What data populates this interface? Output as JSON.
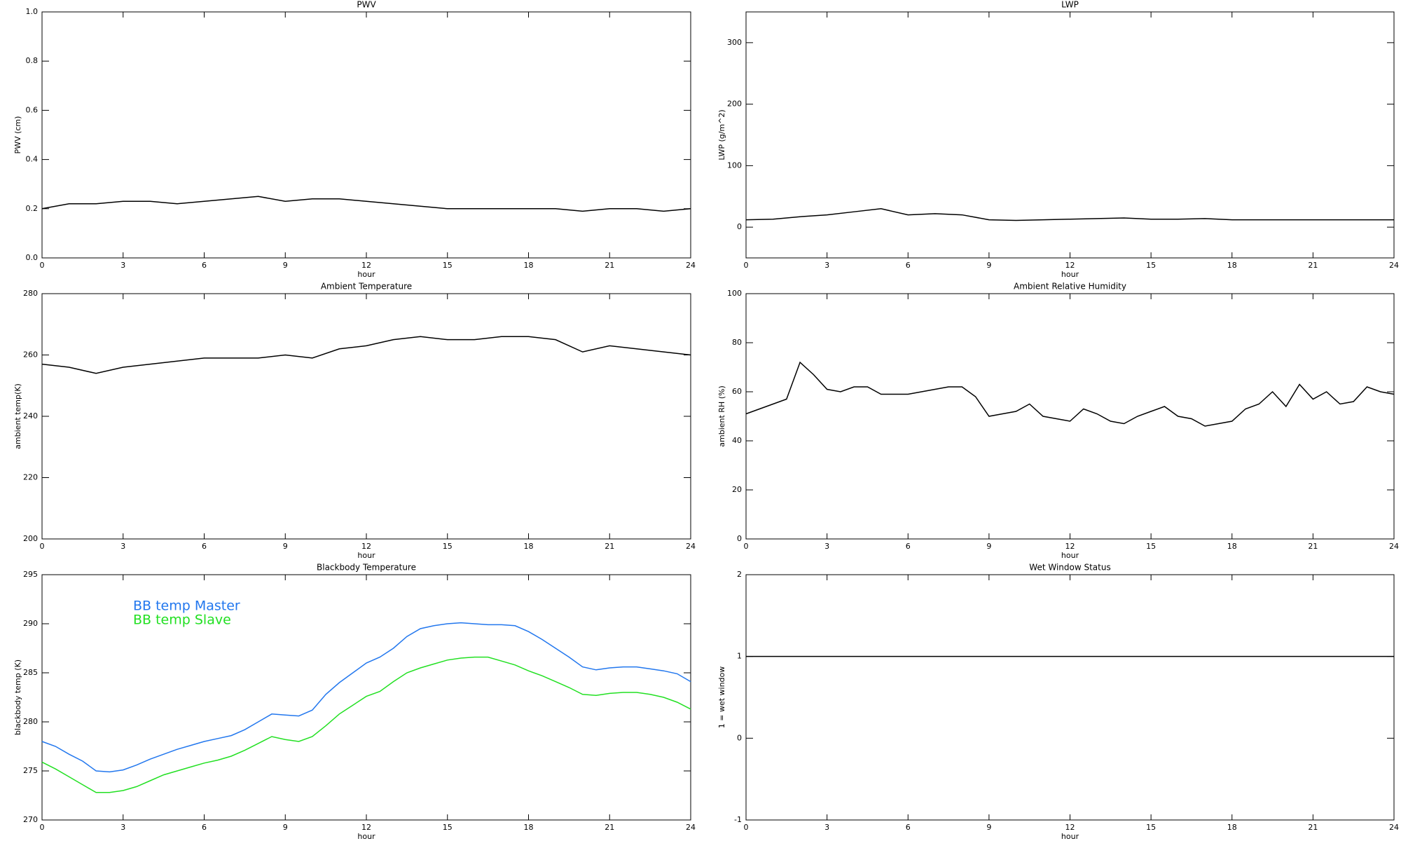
{
  "chart_data": [
    {
      "type": "line",
      "title": "PWV",
      "xlabel": "hour",
      "ylabel": "PWV (cm)",
      "color": "#000000",
      "xlim": [
        0,
        24
      ],
      "xticks": [
        0,
        3,
        6,
        9,
        12,
        15,
        18,
        21,
        24
      ],
      "ylim": [
        0,
        1
      ],
      "yticks": [
        {
          "value": 0,
          "label": "0.0"
        },
        0.2,
        0.4,
        0.6,
        0.8,
        {
          "value": 1,
          "label": "1.0"
        }
      ],
      "x": [
        0,
        1,
        2,
        3,
        4,
        5,
        6,
        7,
        8,
        9,
        10,
        11,
        12,
        13,
        14,
        15,
        16,
        17,
        18,
        19,
        20,
        21,
        22,
        23,
        24
      ],
      "values": [
        0.2,
        0.22,
        0.22,
        0.23,
        0.23,
        0.22,
        0.23,
        0.24,
        0.25,
        0.23,
        0.24,
        0.24,
        0.23,
        0.22,
        0.21,
        0.2,
        0.2,
        0.2,
        0.2,
        0.2,
        0.19,
        0.2,
        0.2,
        0.19,
        0.2
      ]
    },
    {
      "type": "line",
      "title": "LWP",
      "xlabel": "hour",
      "ylabel": "LWP (g/m^2)",
      "color": "#000000",
      "xlim": [
        0,
        24
      ],
      "xticks": [
        0,
        3,
        6,
        9,
        12,
        15,
        18,
        21,
        24
      ],
      "ylim": [
        -50,
        350
      ],
      "yticks": [
        0,
        100,
        200,
        300
      ],
      "x": [
        0,
        1,
        2,
        3,
        4,
        5,
        6,
        7,
        8,
        9,
        10,
        11,
        12,
        13,
        14,
        15,
        16,
        17,
        18,
        19,
        20,
        21,
        22,
        23,
        24
      ],
      "values": [
        12,
        13,
        17,
        20,
        25,
        30,
        20,
        22,
        20,
        12,
        11,
        12,
        13,
        14,
        15,
        13,
        13,
        14,
        12,
        12,
        12,
        12,
        12,
        12,
        12
      ]
    },
    {
      "type": "line",
      "title": "Ambient Temperature",
      "xlabel": "hour",
      "ylabel": "ambient temp(K)",
      "color": "#000000",
      "xlim": [
        0,
        24
      ],
      "xticks": [
        0,
        3,
        6,
        9,
        12,
        15,
        18,
        21,
        24
      ],
      "ylim": [
        200,
        280
      ],
      "yticks": [
        200,
        220,
        240,
        260,
        280
      ],
      "x": [
        0,
        1,
        2,
        3,
        4,
        5,
        6,
        7,
        8,
        9,
        10,
        11,
        12,
        13,
        14,
        15,
        16,
        17,
        18,
        19,
        20,
        21,
        22,
        23,
        24
      ],
      "values": [
        257,
        256,
        254,
        256,
        257,
        258,
        259,
        259,
        259,
        260,
        259,
        262,
        263,
        265,
        266,
        265,
        265,
        266,
        266,
        265,
        261,
        263,
        262,
        261,
        260
      ]
    },
    {
      "type": "line",
      "title": "Ambient Relative Humidity",
      "xlabel": "hour",
      "ylabel": "ambient RH (%)",
      "color": "#000000",
      "xlim": [
        0,
        24
      ],
      "xticks": [
        0,
        3,
        6,
        9,
        12,
        15,
        18,
        21,
        24
      ],
      "ylim": [
        0,
        100
      ],
      "yticks": [
        0,
        20,
        40,
        60,
        80,
        100
      ],
      "x": [
        0,
        0.5,
        1,
        1.5,
        2,
        2.5,
        3,
        3.5,
        4,
        4.5,
        5,
        5.5,
        6,
        6.5,
        7,
        7.5,
        8,
        8.5,
        9,
        9.5,
        10,
        10.5,
        11,
        11.5,
        12,
        12.5,
        13,
        13.5,
        14,
        14.5,
        15,
        15.5,
        16,
        16.5,
        17,
        17.5,
        18,
        18.5,
        19,
        19.5,
        20,
        20.5,
        21,
        21.5,
        22,
        22.5,
        23,
        23.5,
        24
      ],
      "values": [
        51,
        53,
        55,
        57,
        72,
        67,
        61,
        60,
        62,
        62,
        59,
        59,
        59,
        60,
        61,
        62,
        62,
        58,
        50,
        51,
        52,
        55,
        50,
        49,
        48,
        53,
        51,
        48,
        47,
        50,
        52,
        54,
        50,
        49,
        46,
        47,
        48,
        53,
        55,
        60,
        54,
        63,
        57,
        60,
        55,
        56,
        62,
        60,
        59
      ]
    },
    {
      "type": "line",
      "title": "Blackbody Temperature",
      "xlabel": "hour",
      "ylabel": "blackbody temp (K)",
      "legend": "upper left",
      "xlim": [
        0,
        24
      ],
      "xticks": [
        0,
        3,
        6,
        9,
        12,
        15,
        18,
        21,
        24
      ],
      "ylim": [
        270,
        295
      ],
      "yticks": [
        270,
        275,
        280,
        285,
        290,
        295
      ],
      "x": [
        0,
        0.5,
        1,
        1.5,
        2,
        2.5,
        3,
        3.5,
        4,
        4.5,
        5,
        5.5,
        6,
        6.5,
        7,
        7.5,
        8,
        8.5,
        9,
        9.5,
        10,
        10.5,
        11,
        11.5,
        12,
        12.5,
        13,
        13.5,
        14,
        14.5,
        15,
        15.5,
        16,
        16.5,
        17,
        17.5,
        18,
        18.5,
        19,
        19.5,
        20,
        20.5,
        21,
        21.5,
        22,
        22.5,
        23,
        23.5,
        24
      ],
      "series": [
        {
          "name": "BB temp Master",
          "color": "#2277ee",
          "values": [
            278,
            277.5,
            276.7,
            276,
            275,
            274.9,
            275.1,
            275.6,
            276.2,
            276.7,
            277.2,
            277.6,
            278,
            278.3,
            278.6,
            279.2,
            280,
            280.8,
            280.7,
            280.6,
            281.2,
            282.8,
            284,
            285,
            286,
            286.6,
            287.5,
            288.7,
            289.5,
            289.8,
            290,
            290.1,
            290,
            289.9,
            289.9,
            289.8,
            289.2,
            288.4,
            287.5,
            286.6,
            285.6,
            285.3,
            285.5,
            285.6,
            285.6,
            285.4,
            285.2,
            284.9,
            284.1
          ]
        },
        {
          "name": "BB temp Slave",
          "color": "#22e022",
          "values": [
            275.9,
            275.2,
            274.4,
            273.6,
            272.8,
            272.8,
            273,
            273.4,
            274,
            274.6,
            275,
            275.4,
            275.8,
            276.1,
            276.5,
            277.1,
            277.8,
            278.5,
            278.2,
            278,
            278.5,
            279.6,
            280.8,
            281.7,
            282.6,
            283.1,
            284.1,
            285,
            285.5,
            285.9,
            286.3,
            286.5,
            286.6,
            286.6,
            286.2,
            285.8,
            285.2,
            284.7,
            284.1,
            283.5,
            282.8,
            282.7,
            282.9,
            283,
            283,
            282.8,
            282.5,
            282,
            281.3
          ]
        }
      ]
    },
    {
      "type": "line",
      "title": "Wet Window Status",
      "xlabel": "hour",
      "ylabel": "1 = wet window",
      "color": "#000000",
      "xlim": [
        0,
        24
      ],
      "xticks": [
        0,
        3,
        6,
        9,
        12,
        15,
        18,
        21,
        24
      ],
      "ylim": [
        -1,
        2
      ],
      "yticks": [
        -1,
        0,
        1,
        2
      ],
      "x": [
        0,
        24
      ],
      "values": [
        1,
        1
      ]
    }
  ]
}
